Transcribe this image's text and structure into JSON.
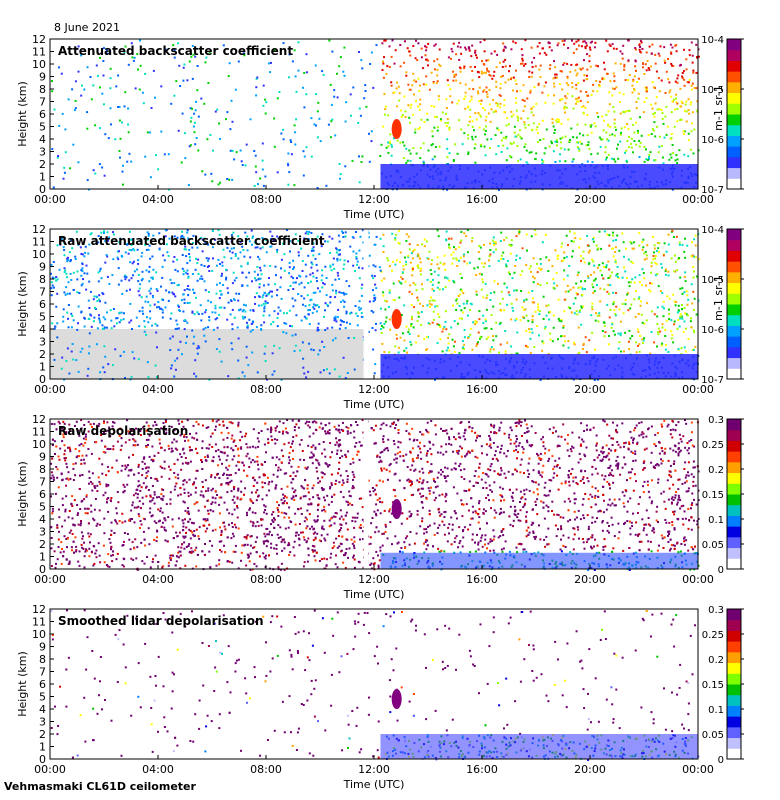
{
  "date": "8 June 2021",
  "instrument": "Vehmasmaki CL61D ceilometer",
  "chart_data": [
    {
      "type": "heatmap",
      "title": "Attenuated backscatter coefficient",
      "xlabel": "Time (UTC)",
      "ylabel": "Height (km)",
      "xticks": [
        "00:00",
        "04:00",
        "08:00",
        "12:00",
        "16:00",
        "20:00",
        "00:00"
      ],
      "yticks": [
        "0",
        "1",
        "2",
        "3",
        "4",
        "5",
        "6",
        "7",
        "8",
        "9",
        "10",
        "11",
        "12"
      ],
      "ylim": [
        0,
        12
      ],
      "colorbar": {
        "scale": "log",
        "range": [
          1e-07,
          0.0001
        ],
        "ticks": [
          "10-7",
          "10-6",
          "10-5",
          "10-4"
        ],
        "unit": "m-1 sr-1"
      }
    },
    {
      "type": "heatmap",
      "title": "Raw attenuated backscatter coefficient",
      "xlabel": "Time (UTC)",
      "ylabel": "Height (km)",
      "xticks": [
        "00:00",
        "04:00",
        "08:00",
        "12:00",
        "16:00",
        "20:00",
        "00:00"
      ],
      "yticks": [
        "0",
        "1",
        "2",
        "3",
        "4",
        "5",
        "6",
        "7",
        "8",
        "9",
        "10",
        "11",
        "12"
      ],
      "ylim": [
        0,
        12
      ],
      "colorbar": {
        "scale": "log",
        "range": [
          1e-07,
          0.0001
        ],
        "ticks": [
          "10-7",
          "10-6",
          "10-5",
          "10-4"
        ],
        "unit": "m-1 sr-1"
      }
    },
    {
      "type": "heatmap",
      "title": "Raw depolarisation",
      "xlabel": "Time (UTC)",
      "ylabel": "Height (km)",
      "xticks": [
        "00:00",
        "04:00",
        "08:00",
        "12:00",
        "16:00",
        "20:00",
        "00:00"
      ],
      "yticks": [
        "0",
        "1",
        "2",
        "3",
        "4",
        "5",
        "6",
        "7",
        "8",
        "9",
        "10",
        "11",
        "12"
      ],
      "ylim": [
        0,
        12
      ],
      "colorbar": {
        "scale": "linear",
        "range": [
          0,
          0.3
        ],
        "ticks": [
          "0",
          "0.05",
          "0.1",
          "0.15",
          "0.2",
          "0.25",
          "0.3"
        ]
      }
    },
    {
      "type": "heatmap",
      "title": "Smoothed lidar depolarisation",
      "xlabel": "Time (UTC)",
      "ylabel": "Height (km)",
      "xticks": [
        "00:00",
        "04:00",
        "08:00",
        "12:00",
        "16:00",
        "20:00",
        "00:00"
      ],
      "yticks": [
        "0",
        "1",
        "2",
        "3",
        "4",
        "5",
        "6",
        "7",
        "8",
        "9",
        "10",
        "11",
        "12"
      ],
      "ylim": [
        0,
        12
      ],
      "colorbar": {
        "scale": "linear",
        "range": [
          0,
          0.3
        ],
        "ticks": [
          "0",
          "0.05",
          "0.1",
          "0.15",
          "0.2",
          "0.25",
          "0.3"
        ]
      }
    }
  ]
}
